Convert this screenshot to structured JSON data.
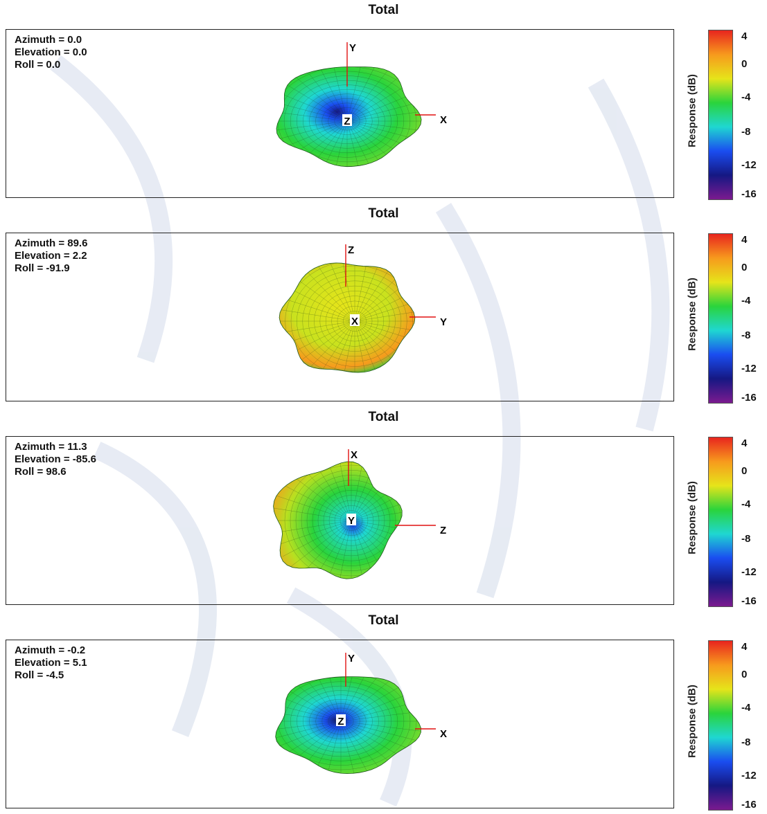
{
  "colors": {
    "red": "#e8251e",
    "orange": "#f79a1d",
    "yellow": "#e6e41a",
    "green": "#2ad43c",
    "cyan": "#1fd7d1",
    "blue": "#1a4df0",
    "navy": "#151883",
    "purple": "#7b1a8f",
    "axis": "#e01010",
    "watermark": "#c9d3e6"
  },
  "chart_data": [
    {
      "type": "3d-surface",
      "title": "Total",
      "angles": [
        "Azimuth = 0.0",
        "Elevation = 0.0",
        "Roll = 0.0"
      ],
      "axes": {
        "vertical": "Y",
        "horizontal": "X",
        "center": "Z"
      },
      "colorbar": {
        "label": "Response (dB)",
        "ticks": [
          "4",
          "0",
          "-4",
          "-8",
          "-12",
          "-16"
        ],
        "range": [
          -16,
          4
        ]
      },
      "view": "top"
    },
    {
      "type": "3d-surface",
      "title": "Total",
      "angles": [
        "Azimuth = 89.6",
        "Elevation = 2.2",
        "Roll = -91.9"
      ],
      "axes": {
        "vertical": "Z",
        "horizontal": "Y",
        "center": "X"
      },
      "colorbar": {
        "label": "Response (dB)",
        "ticks": [
          "4",
          "0",
          "-4",
          "-8",
          "-12",
          "-16"
        ],
        "range": [
          -16,
          4
        ]
      },
      "view": "side"
    },
    {
      "type": "3d-surface",
      "title": "Total",
      "angles": [
        "Azimuth = 11.3",
        "Elevation = -85.6",
        "Roll = 98.6"
      ],
      "axes": {
        "vertical": "X",
        "horizontal": "Z",
        "center": "Y"
      },
      "colorbar": {
        "label": "Response (dB)",
        "ticks": [
          "4",
          "0",
          "-4",
          "-8",
          "-12",
          "-16"
        ],
        "range": [
          -16,
          4
        ]
      },
      "view": "front"
    },
    {
      "type": "3d-surface",
      "title": "Total",
      "angles": [
        "Azimuth = -0.2",
        "Elevation = 5.1",
        "Roll = -4.5"
      ],
      "axes": {
        "vertical": "Y",
        "horizontal": "X",
        "center": "Z"
      },
      "colorbar": {
        "label": "Response (dB)",
        "ticks": [
          "4",
          "0",
          "-4",
          "-8",
          "-12",
          "-16"
        ],
        "range": [
          -16,
          4
        ]
      },
      "view": "top"
    }
  ]
}
